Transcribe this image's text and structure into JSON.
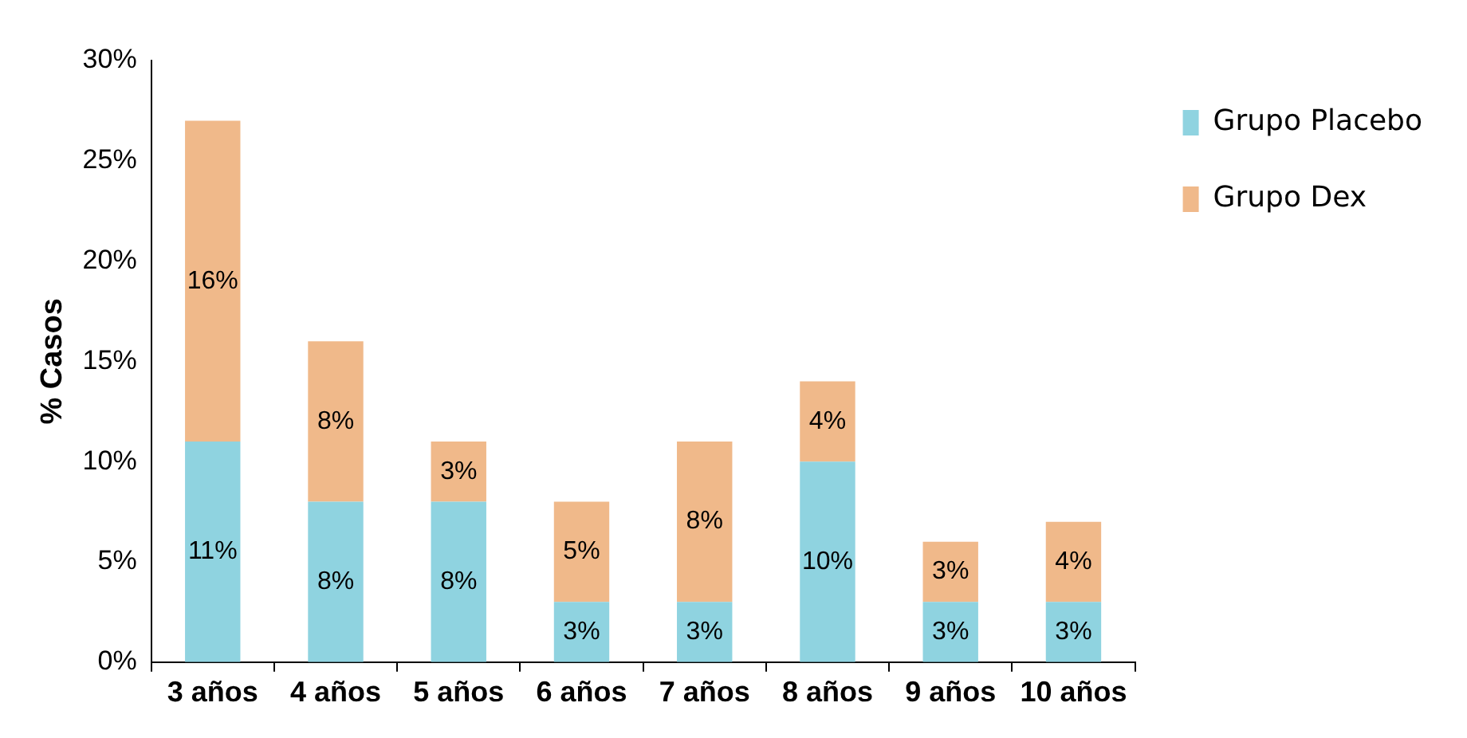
{
  "chart_data": {
    "type": "bar",
    "stacked": true,
    "ylabel": "% Casos",
    "categories": [
      "3 años",
      "4 años",
      "5 años",
      "6 años",
      "7 años",
      "8 años",
      "9 años",
      "10 años"
    ],
    "series": [
      {
        "name": "Grupo Placebo",
        "color": "#8fd3e0",
        "values": [
          11,
          8,
          8,
          3,
          3,
          10,
          3,
          3
        ],
        "value_labels": [
          "11%",
          "8%",
          "8%",
          "3%",
          "3%",
          "10%",
          "3%",
          "3%"
        ]
      },
      {
        "name": "Grupo Dex",
        "color": "#f0b98a",
        "values": [
          16,
          8,
          3,
          5,
          8,
          4,
          3,
          4
        ],
        "value_labels": [
          "16%",
          "8%",
          "3%",
          "5%",
          "8%",
          "4%",
          "3%",
          "4%"
        ]
      }
    ],
    "ylim": [
      0,
      30
    ],
    "yticks": [
      {
        "value": 0,
        "label": "0%"
      },
      {
        "value": 5,
        "label": "5%"
      },
      {
        "value": 10,
        "label": "10%"
      },
      {
        "value": 15,
        "label": "15%"
      },
      {
        "value": 20,
        "label": "20%"
      },
      {
        "value": 25,
        "label": "25%"
      },
      {
        "value": 30,
        "label": "30%"
      }
    ],
    "grid": false,
    "legend": "right"
  }
}
